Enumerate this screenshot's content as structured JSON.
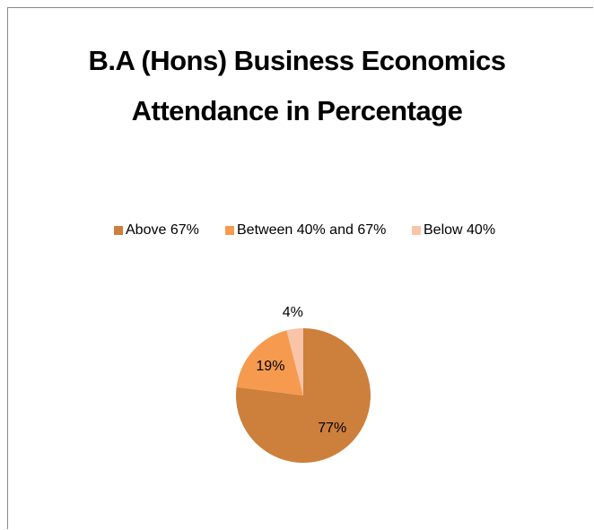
{
  "chart_data": {
    "type": "pie",
    "title": "B.A (Hons) Business Economics Attendance in Percentage",
    "categories": [
      "Above 67%",
      "Between 40% and 67%",
      "Below 40%"
    ],
    "values": [
      77,
      19,
      4
    ],
    "value_labels": [
      "77%",
      "19%",
      "4%"
    ],
    "colors": [
      "#cd7f3c",
      "#f59a4e",
      "#f9c4a8"
    ],
    "legend": "top"
  }
}
